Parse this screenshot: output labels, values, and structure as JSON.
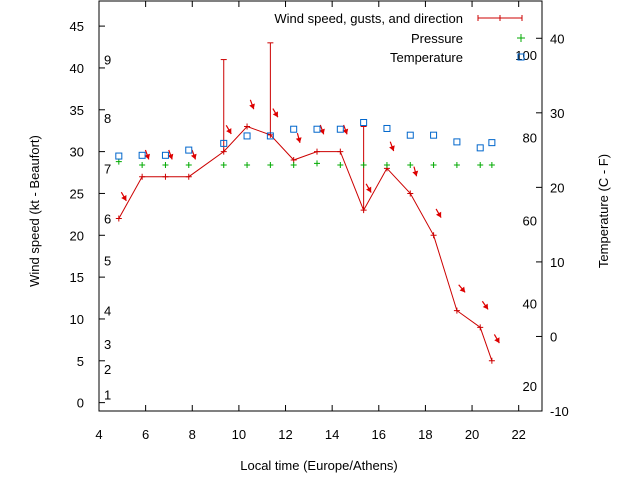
{
  "chart_data": {
    "type": "line",
    "xlabel": "Local time (Europe/Athens)",
    "ylabel_left": "Wind speed (kt - Beaufort)",
    "ylabel_right": "Temperature (C - F)",
    "x_ticks": [
      "4",
      "6",
      "8",
      "10",
      "12",
      "14",
      "16",
      "18",
      "20",
      "22"
    ],
    "y_left_ticks": [
      "0",
      "5",
      "10",
      "15",
      "20",
      "25",
      "30",
      "35",
      "40",
      "45"
    ],
    "beaufort_ticks": [
      "1",
      "2",
      "3",
      "4",
      "5",
      "6",
      "7",
      "8",
      "9"
    ],
    "temp_c_ticks": [
      "-10",
      "0",
      "10",
      "20",
      "30",
      "40"
    ],
    "temp_f_ticks": [
      "20",
      "40",
      "60",
      "80",
      "100"
    ],
    "xlim": [
      4,
      23
    ],
    "ylim_left": [
      -1,
      48
    ],
    "ylim_temp_c": [
      -10,
      45
    ],
    "legend": {
      "position": "top-right",
      "entries": [
        "Wind speed, gusts, and direction",
        "Pressure",
        "Temperature"
      ]
    },
    "colors": {
      "wind": "#cc0000",
      "pressure": "#00aa00",
      "temperature": "#0066cc",
      "arrow": "#dd0000"
    },
    "series": [
      {
        "name": "Wind speed, gusts, and direction",
        "x": [
          4.85,
          5.85,
          6.85,
          7.85,
          9.35,
          10.35,
          11.35,
          12.35,
          13.35,
          14.35,
          15.35,
          16.35,
          17.35,
          18.35,
          19.35,
          20.35,
          20.85
        ],
        "y": [
          22,
          27,
          27,
          27,
          30,
          33,
          32,
          29,
          30,
          30,
          23,
          28,
          25,
          20,
          11,
          9,
          5
        ],
        "gusts": [
          null,
          null,
          null,
          null,
          41,
          null,
          43,
          null,
          null,
          null,
          33,
          null,
          null,
          null,
          null,
          null,
          null
        ],
        "direction_deg": [
          330,
          340,
          340,
          340,
          330,
          340,
          330,
          345,
          340,
          340,
          330,
          340,
          345,
          330,
          320,
          325,
          330
        ]
      },
      {
        "name": "Pressure",
        "x": [
          4.85,
          5.85,
          6.85,
          7.85,
          9.35,
          10.35,
          11.35,
          12.35,
          13.35,
          14.35,
          15.35,
          16.35,
          17.35,
          18.35,
          19.35,
          20.35,
          20.85
        ],
        "y": [
          28.8,
          28.4,
          28.4,
          28.4,
          28.4,
          28.4,
          28.4,
          28.4,
          28.6,
          28.4,
          28.4,
          28.4,
          28.4,
          28.4,
          28.4,
          28.4,
          28.4
        ]
      },
      {
        "name": "Temperature",
        "x": [
          4.85,
          5.85,
          6.85,
          7.85,
          9.35,
          10.35,
          11.35,
          12.35,
          13.35,
          14.35,
          15.35,
          16.35,
          17.35,
          18.35,
          19.35,
          20.35,
          20.85
        ],
        "y_c": [
          24.2,
          24.3,
          24.3,
          25.0,
          25.9,
          26.9,
          26.9,
          27.8,
          27.8,
          27.8,
          28.7,
          27.9,
          27.0,
          27.0,
          26.1,
          25.3,
          26.0
        ]
      }
    ]
  }
}
